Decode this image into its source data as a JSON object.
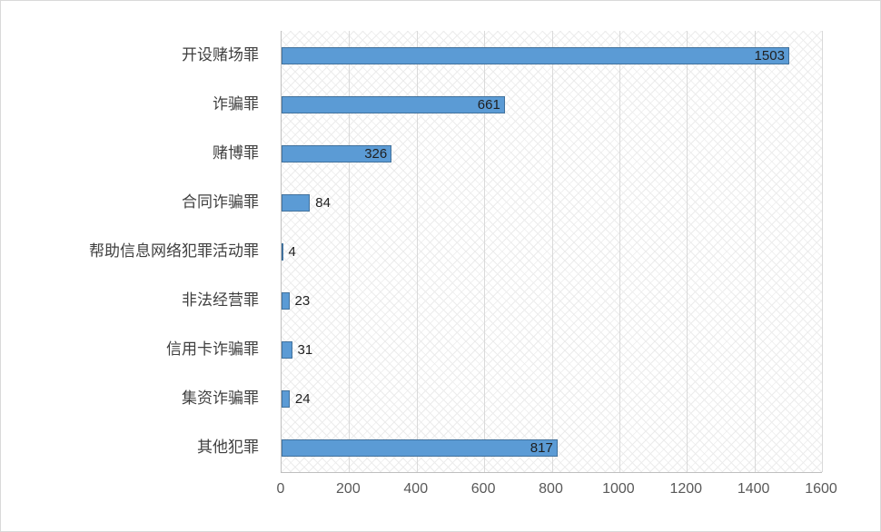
{
  "chart_data": {
    "type": "bar",
    "orientation": "horizontal",
    "title": "",
    "categories": [
      "开设赌场罪",
      "诈骗罪",
      "赌博罪",
      "合同诈骗罪",
      "帮助信息网络犯罪活动罪",
      "非法经营罪",
      "信用卡诈骗罪",
      "集资诈骗罪",
      "其他犯罪"
    ],
    "values": [
      1503,
      661,
      326,
      84,
      4,
      23,
      31,
      24,
      817
    ],
    "xlim": [
      0,
      1600
    ],
    "x_ticks": [
      0,
      200,
      400,
      600,
      800,
      1000,
      1200,
      1400,
      1600
    ],
    "bar_color": "#5b9bd5",
    "bar_border_color": "#41719c",
    "grid": true,
    "legend": false,
    "plot_background": "diagonal-crosshatch"
  },
  "colors": {
    "gridline": "#d9d9d9",
    "axis": "#bfbfbf",
    "category_label": "#404040",
    "tick_label": "#595959",
    "value_label": "#1f1f1f",
    "border": "#d9d9d9"
  }
}
